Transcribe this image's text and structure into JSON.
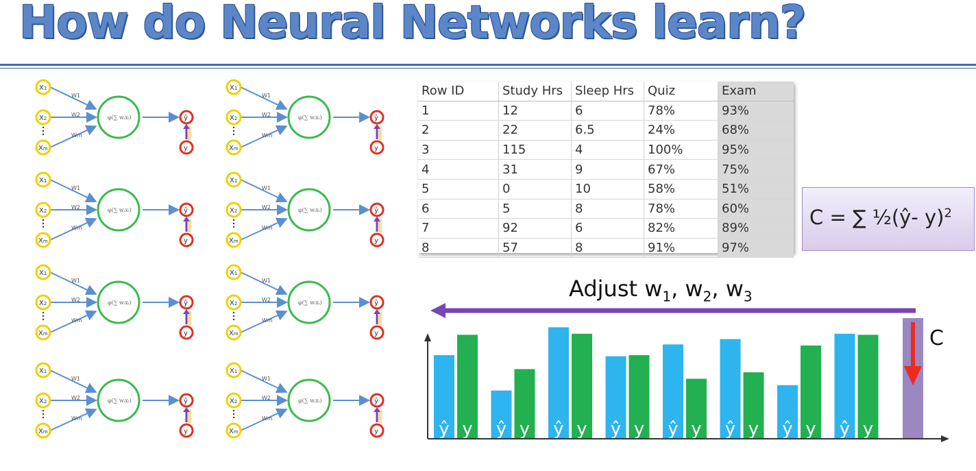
{
  "title": "How do Neural Networks learn?",
  "network": {
    "input_top": "X",
    "input_top_sub": "1",
    "input_mid": "X",
    "input_mid_sub": "2",
    "input_bot": "X",
    "input_bot_sub": "m",
    "weight_top": "W1",
    "weight_mid": "W2",
    "weight_bot": "Wm",
    "output": "ŷ",
    "actual": "y",
    "count": 8
  },
  "table": {
    "headers": [
      "Row ID",
      "Study Hrs",
      "Sleep Hrs",
      "Quiz",
      "Exam"
    ],
    "rows": [
      [
        "1",
        "12",
        "6",
        "78%",
        "93%"
      ],
      [
        "2",
        "22",
        "6.5",
        "24%",
        "68%"
      ],
      [
        "3",
        "115",
        "4",
        "100%",
        "95%"
      ],
      [
        "4",
        "31",
        "9",
        "67%",
        "75%"
      ],
      [
        "5",
        "0",
        "10",
        "58%",
        "51%"
      ],
      [
        "6",
        "5",
        "8",
        "78%",
        "60%"
      ],
      [
        "7",
        "92",
        "6",
        "82%",
        "89%"
      ],
      [
        "8",
        "57",
        "8",
        "91%",
        "97%"
      ]
    ]
  },
  "cost_formula": {
    "text": "C = ∑ ½(ŷ- y)",
    "exponent": "2"
  },
  "adjust": {
    "prefix": "Adjust w",
    "sub1": "1",
    "sep1": ", w",
    "sub2": "2",
    "sep2": ", w",
    "sub3": "3"
  },
  "cost_label": "C",
  "chart_data": {
    "type": "bar",
    "categories": [
      "1",
      "2",
      "3",
      "4",
      "5",
      "6",
      "7",
      "8"
    ],
    "series": [
      {
        "name": "ŷ",
        "values": [
          78,
          45,
          104,
          77,
          88,
          93,
          50,
          98
        ]
      },
      {
        "name": "y",
        "values": [
          97,
          65,
          98,
          78,
          56,
          62,
          87,
          97
        ]
      }
    ],
    "bar_labels": [
      "ŷ",
      "y"
    ],
    "colors": {
      "y_hat": "#2eb4ee",
      "y": "#22b050",
      "cost_bar": "#9b87c2",
      "cost_arrow": "#ee2a1e",
      "adjust_arrow": "#7b44b4"
    },
    "ylim": [
      0,
      110
    ],
    "xlabel": "",
    "ylabel": ""
  },
  "colors": {
    "title": "#5b87c9",
    "input_node": "#f0d000",
    "hidden_node": "#3aba4a",
    "output_node": "#e03020",
    "edge": "#5a8fd0"
  }
}
